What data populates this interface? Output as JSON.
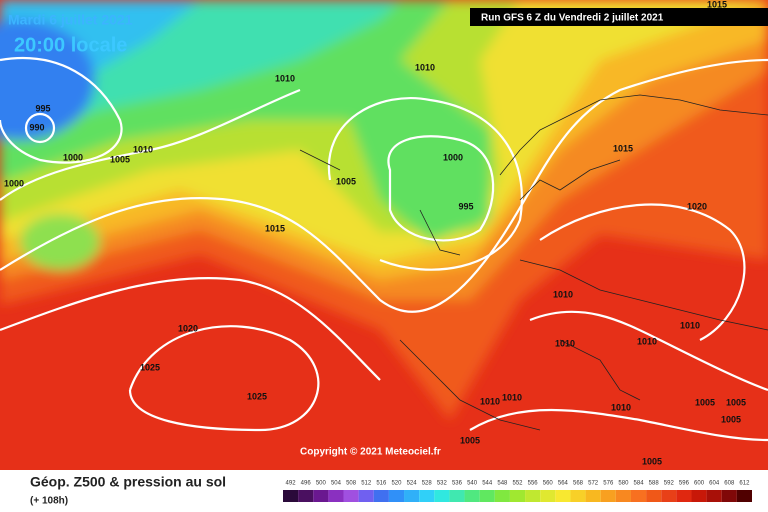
{
  "header": {
    "date": "Mardi 6 juillet 2021",
    "time": "20:00 locale",
    "run": "Run GFS 6 Z du Vendredi 2 juillet 2021",
    "copyright": "Copyright © 2021 Meteociel.fr"
  },
  "footer": {
    "title": "Géop. Z500 & pression au sol",
    "lead": "(+ 108h)"
  },
  "legend": {
    "labels": [
      492,
      496,
      500,
      504,
      508,
      512,
      516,
      520,
      524,
      528,
      532,
      536,
      540,
      544,
      548,
      552,
      556,
      560,
      564,
      568,
      572,
      576,
      580,
      584,
      588,
      592,
      596,
      600,
      604,
      608,
      612
    ]
  },
  "isobar_labels": [
    1015,
    1010,
    1010,
    995,
    990,
    1000,
    1005,
    1010,
    1000,
    1005,
    1000,
    995,
    1015,
    1020,
    1015,
    1010,
    1010,
    1010,
    1010,
    1020,
    1025,
    1025,
    1010,
    1010,
    1010,
    1005,
    1005,
    1005,
    1005,
    1005
  ]
}
